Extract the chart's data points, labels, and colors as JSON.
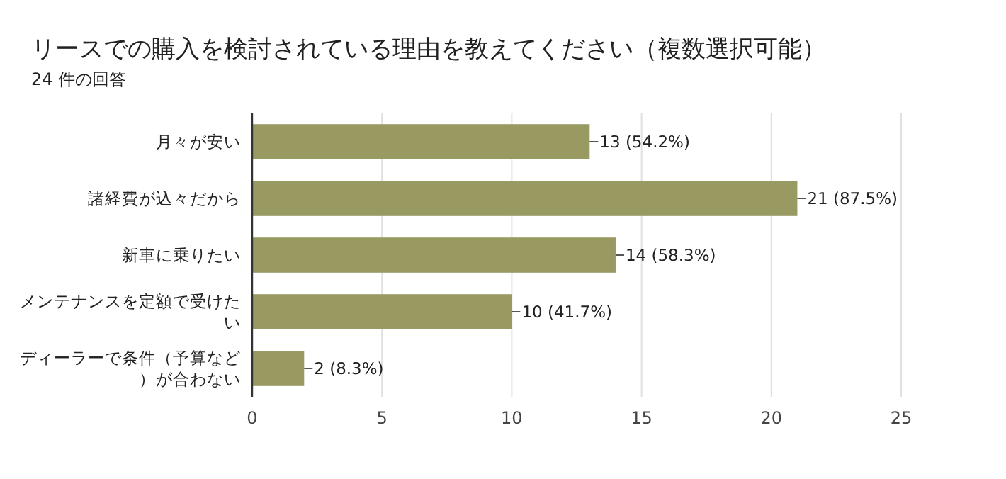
{
  "chart_data": {
    "type": "bar",
    "orientation": "horizontal",
    "title": "リースでの購入を検討されている理由を教えてください（複数選択可能）",
    "subtitle": "24 件の回答",
    "categories": [
      "月々が安い",
      "諸経費が込々だから",
      "新車に乗りたい",
      "メンテナンスを定額で受けたい",
      "ディーラーで条件（予算など）が合わない"
    ],
    "values": [
      13,
      21,
      14,
      10,
      2
    ],
    "value_labels": [
      "13 (54.2%)",
      "21 (87.5%)",
      "14 (58.3%)",
      "10 (41.7%)",
      "2 (8.3%)"
    ],
    "color": "#989a61",
    "xlim": [
      0,
      25
    ],
    "xticks": [
      0,
      5,
      10,
      15,
      20,
      25
    ],
    "grid": "x"
  }
}
